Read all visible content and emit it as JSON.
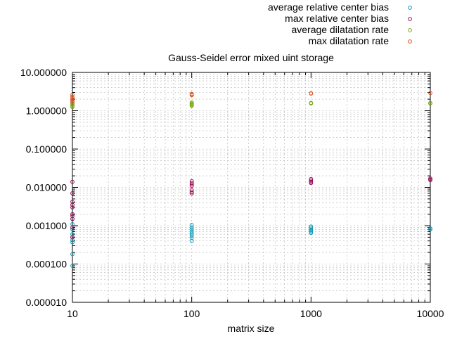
{
  "chart_data": {
    "type": "scatter",
    "title": "Gauss-Seidel error mixed uint storage",
    "xlabel": "matrix size",
    "ylabel": "",
    "x_scale": "log",
    "y_scale": "log",
    "xlim": [
      10,
      10000
    ],
    "ylim": [
      1e-05,
      10
    ],
    "grid": true,
    "legend_position": "top-right",
    "x_ticks": [
      {
        "value": 10,
        "label": "10"
      },
      {
        "value": 100,
        "label": "100"
      },
      {
        "value": 1000,
        "label": "1000"
      },
      {
        "value": 10000,
        "label": "10000"
      }
    ],
    "y_ticks": [
      {
        "value": 10,
        "label": "10.000000"
      },
      {
        "value": 1,
        "label": "1.000000"
      },
      {
        "value": 0.1,
        "label": "0.100000"
      },
      {
        "value": 0.01,
        "label": "0.010000"
      },
      {
        "value": 0.001,
        "label": "0.001000"
      },
      {
        "value": 0.0001,
        "label": "0.000100"
      },
      {
        "value": 1e-05,
        "label": "0.000010"
      }
    ],
    "series": [
      {
        "name": "average relative center bias",
        "color": "#0f9bb4",
        "points": [
          {
            "x": 10,
            "y": 0.0015
          },
          {
            "x": 10,
            "y": 0.0011
          },
          {
            "x": 10,
            "y": 0.0008
          },
          {
            "x": 10,
            "y": 0.0006
          },
          {
            "x": 10,
            "y": 0.0005
          },
          {
            "x": 10,
            "y": 0.00042
          },
          {
            "x": 10,
            "y": 0.00037
          },
          {
            "x": 10,
            "y": 0.00018
          },
          {
            "x": 10,
            "y": 9e-05
          },
          {
            "x": 100,
            "y": 0.00105
          },
          {
            "x": 100,
            "y": 0.0009
          },
          {
            "x": 100,
            "y": 0.0008
          },
          {
            "x": 100,
            "y": 0.0007
          },
          {
            "x": 100,
            "y": 0.00062
          },
          {
            "x": 100,
            "y": 0.00055
          },
          {
            "x": 100,
            "y": 0.00048
          },
          {
            "x": 100,
            "y": 0.0004
          },
          {
            "x": 1000,
            "y": 0.00095
          },
          {
            "x": 1000,
            "y": 0.00088
          },
          {
            "x": 1000,
            "y": 0.0008
          },
          {
            "x": 1000,
            "y": 0.00075
          },
          {
            "x": 1000,
            "y": 0.0007
          },
          {
            "x": 1000,
            "y": 0.00065
          },
          {
            "x": 10000,
            "y": 0.00085
          },
          {
            "x": 10000,
            "y": 0.0008
          }
        ]
      },
      {
        "name": "max relative center bias",
        "color": "#9a0f58",
        "points": [
          {
            "x": 10,
            "y": 0.014
          },
          {
            "x": 10,
            "y": 0.007
          },
          {
            "x": 10,
            "y": 0.0042
          },
          {
            "x": 10,
            "y": 0.0035
          },
          {
            "x": 10,
            "y": 0.003
          },
          {
            "x": 10,
            "y": 0.002
          },
          {
            "x": 10,
            "y": 0.0018
          },
          {
            "x": 10,
            "y": 0.0015
          },
          {
            "x": 10,
            "y": 0.0009
          },
          {
            "x": 10,
            "y": 0.0005
          },
          {
            "x": 100,
            "y": 0.0145
          },
          {
            "x": 100,
            "y": 0.013
          },
          {
            "x": 100,
            "y": 0.012
          },
          {
            "x": 100,
            "y": 0.011
          },
          {
            "x": 100,
            "y": 0.0085
          },
          {
            "x": 100,
            "y": 0.0075
          },
          {
            "x": 100,
            "y": 0.007
          },
          {
            "x": 1000,
            "y": 0.0165
          },
          {
            "x": 1000,
            "y": 0.015
          },
          {
            "x": 1000,
            "y": 0.014
          },
          {
            "x": 1000,
            "y": 0.013
          },
          {
            "x": 10000,
            "y": 0.017
          },
          {
            "x": 10000,
            "y": 0.016
          },
          {
            "x": 10000,
            "y": 0.0155
          }
        ]
      },
      {
        "name": "average dilatation rate",
        "color": "#7ba60e",
        "points": [
          {
            "x": 10,
            "y": 1.55
          },
          {
            "x": 10,
            "y": 1.45
          },
          {
            "x": 10,
            "y": 1.35
          },
          {
            "x": 10,
            "y": 1.25
          },
          {
            "x": 100,
            "y": 1.65
          },
          {
            "x": 100,
            "y": 1.55
          },
          {
            "x": 100,
            "y": 1.48
          },
          {
            "x": 100,
            "y": 1.4
          },
          {
            "x": 100,
            "y": 1.35
          },
          {
            "x": 1000,
            "y": 1.6
          },
          {
            "x": 1000,
            "y": 1.55
          },
          {
            "x": 10000,
            "y": 1.6
          },
          {
            "x": 10000,
            "y": 1.55
          }
        ]
      },
      {
        "name": "max dilatation rate",
        "color": "#e0521e",
        "points": [
          {
            "x": 10,
            "y": 2.6
          },
          {
            "x": 10,
            "y": 2.3
          },
          {
            "x": 10,
            "y": 2.1
          },
          {
            "x": 10,
            "y": 1.95
          },
          {
            "x": 10,
            "y": 1.8
          },
          {
            "x": 10,
            "y": 1.7
          },
          {
            "x": 100,
            "y": 2.75
          },
          {
            "x": 100,
            "y": 2.65
          },
          {
            "x": 100,
            "y": 2.55
          },
          {
            "x": 1000,
            "y": 2.85
          },
          {
            "x": 1000,
            "y": 2.8
          },
          {
            "x": 10000,
            "y": 2.9
          }
        ]
      }
    ]
  }
}
